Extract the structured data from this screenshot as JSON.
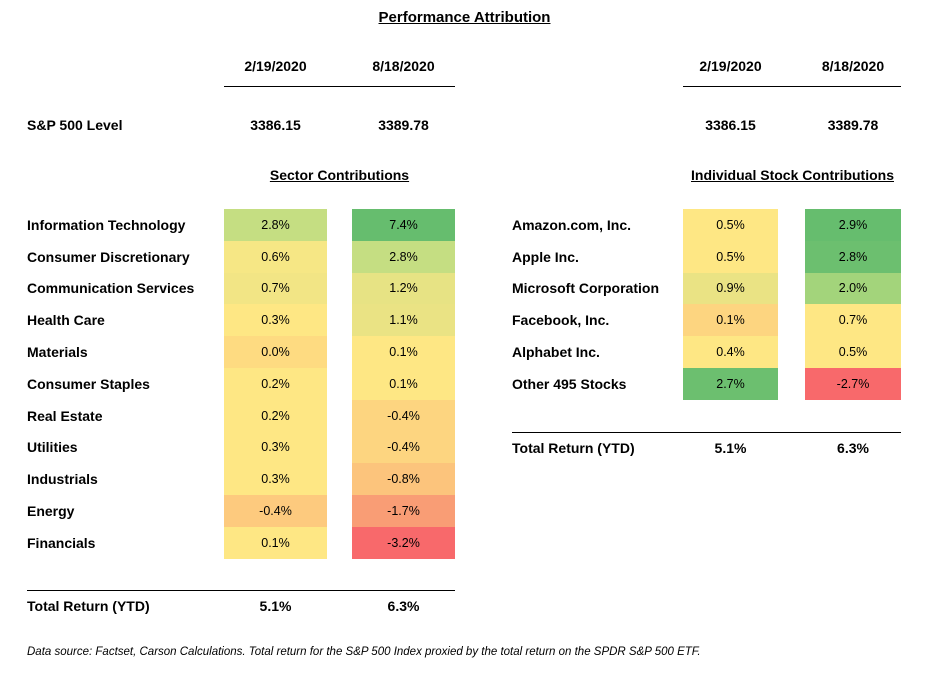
{
  "title": "Performance Attribution",
  "dates": [
    "2/19/2020",
    "8/18/2020"
  ],
  "sp500": {
    "label": "S&P 500 Level",
    "left": [
      "3386.15",
      "3389.78"
    ],
    "right": [
      "3386.15",
      "3389.78"
    ]
  },
  "sector": {
    "title": "Sector Contributions",
    "rows": [
      {
        "name": "Information Technology",
        "v1": "2.8%",
        "v2": "7.4%",
        "c1": "#c5de82",
        "c2": "#66bd6e"
      },
      {
        "name": "Consumer Discretionary",
        "v1": "0.6%",
        "v2": "2.8%",
        "c1": "#f6e785",
        "c2": "#c5de82"
      },
      {
        "name": "Communication Services",
        "v1": "0.7%",
        "v2": "1.2%",
        "c1": "#f2e585",
        "c2": "#e7e384"
      },
      {
        "name": "Health Care",
        "v1": "0.3%",
        "v2": "1.1%",
        "c1": "#fee784",
        "c2": "#eae384"
      },
      {
        "name": "Materials",
        "v1": "0.0%",
        "v2": "0.1%",
        "c1": "#fedb81",
        "c2": "#fee784"
      },
      {
        "name": "Consumer Staples",
        "v1": "0.2%",
        "v2": "0.1%",
        "c1": "#fee784",
        "c2": "#fee784"
      },
      {
        "name": "Real Estate",
        "v1": "0.2%",
        "v2": "-0.4%",
        "c1": "#fee784",
        "c2": "#fdd580"
      },
      {
        "name": "Utilities",
        "v1": "0.3%",
        "v2": "-0.4%",
        "c1": "#fee784",
        "c2": "#fdd580"
      },
      {
        "name": "Industrials",
        "v1": "0.3%",
        "v2": "-0.8%",
        "c1": "#fee784",
        "c2": "#fcc47c"
      },
      {
        "name": "Energy",
        "v1": "-0.4%",
        "v2": "-1.7%",
        "c1": "#fdca7e",
        "c2": "#f99d75"
      },
      {
        "name": "Financials",
        "v1": "0.1%",
        "v2": "-3.2%",
        "c1": "#fee784",
        "c2": "#f8696b"
      }
    ],
    "total_label": "Total Return (YTD)",
    "totals": [
      "5.1%",
      "6.3%"
    ]
  },
  "stocks": {
    "title": "Individual Stock Contributions",
    "rows": [
      {
        "name": "Amazon.com, Inc.",
        "v1": "0.5%",
        "v2": "2.9%",
        "c1": "#fee784",
        "c2": "#66bd6e"
      },
      {
        "name": "Apple Inc.",
        "v1": "0.5%",
        "v2": "2.8%",
        "c1": "#fee784",
        "c2": "#6cbf6f"
      },
      {
        "name": "Microsoft Corporation",
        "v1": "0.9%",
        "v2": "2.0%",
        "c1": "#eae384",
        "c2": "#a3d47b"
      },
      {
        "name": "Facebook, Inc.",
        "v1": "0.1%",
        "v2": "0.7%",
        "c1": "#fdd580",
        "c2": "#fee784"
      },
      {
        "name": "Alphabet Inc.",
        "v1": "0.4%",
        "v2": "0.5%",
        "c1": "#fee784",
        "c2": "#fee784"
      },
      {
        "name": "Other 495 Stocks",
        "v1": "2.7%",
        "v2": "-2.7%",
        "c1": "#6cbf6f",
        "c2": "#f8696b"
      }
    ],
    "total_label": "Total Return (YTD)",
    "totals": [
      "5.1%",
      "6.3%"
    ]
  },
  "footnote": "Data source: Factset, Carson Calculations. Total return for the S&P 500 Index proxied by the total return on the SPDR S&P 500 ETF."
}
